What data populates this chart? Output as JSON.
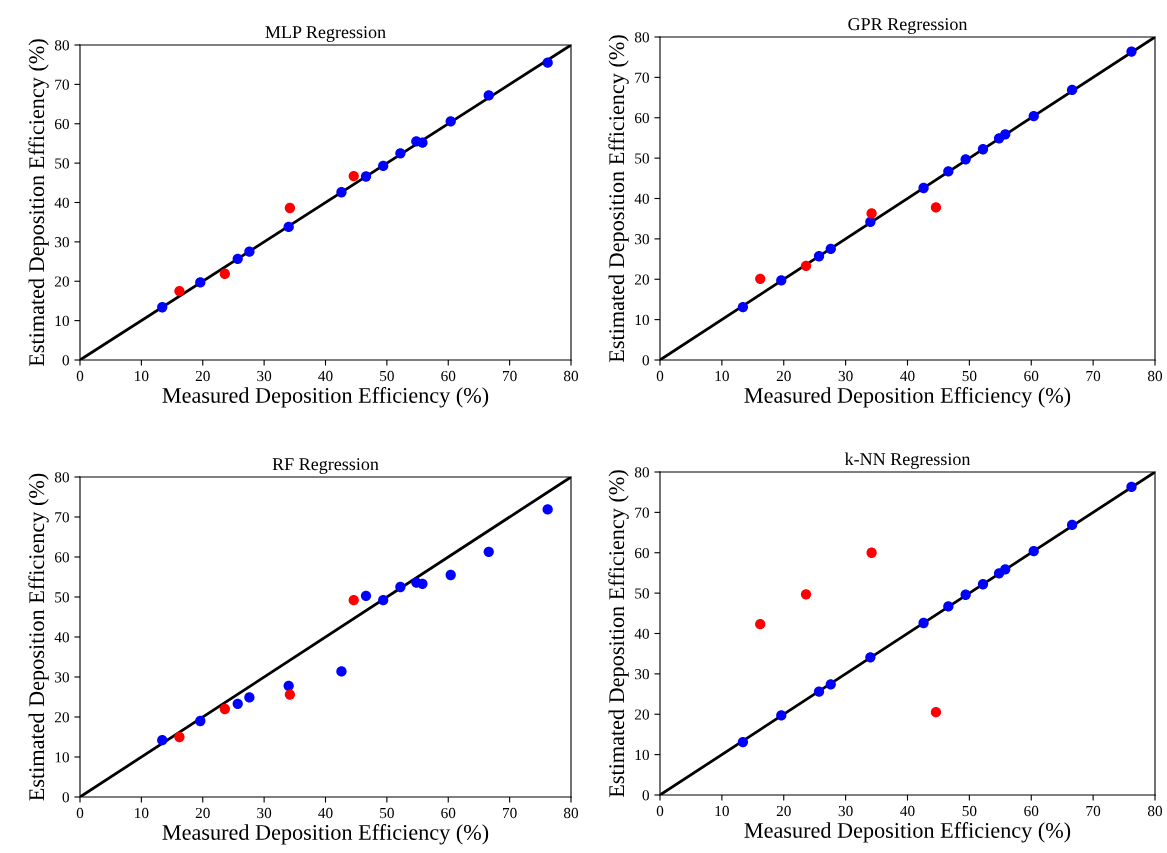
{
  "chart_data": [
    {
      "type": "scatter",
      "title": "MLP Regression",
      "xlabel": "Measured Deposition Efficiency (%)",
      "ylabel": "Estimated Deposition Efficiency (%)",
      "xlim": [
        0,
        80
      ],
      "ylim": [
        0,
        80
      ],
      "xticks": [
        0,
        10,
        20,
        30,
        40,
        50,
        60,
        70,
        80
      ],
      "yticks": [
        0,
        10,
        20,
        30,
        40,
        50,
        60,
        70,
        80
      ],
      "grid": false,
      "marker": "circle",
      "series": [
        {
          "type": "line",
          "marker": "none",
          "color": "#000000",
          "x": [
            0,
            80
          ],
          "values": [
            0,
            80
          ]
        },
        {
          "color": "#0000ff",
          "x": [
            13.4,
            19.6,
            25.7,
            27.6,
            34.0,
            42.6,
            46.6,
            49.4,
            52.2,
            54.8,
            55.8,
            60.4,
            66.6,
            76.2
          ],
          "values": [
            13.4,
            19.7,
            25.7,
            27.5,
            33.8,
            42.6,
            46.6,
            49.3,
            52.5,
            55.5,
            55.2,
            60.6,
            67.2,
            75.5
          ]
        },
        {
          "color": "#ff0000",
          "x": [
            16.2,
            23.6,
            34.2,
            44.6
          ],
          "values": [
            17.5,
            21.9,
            38.6,
            46.7
          ]
        }
      ]
    },
    {
      "type": "scatter",
      "title": "GPR Regression",
      "xlabel": "Measured Deposition Efficiency (%)",
      "ylabel": "Estimated Deposition Efficiency (%)",
      "xlim": [
        0,
        80
      ],
      "ylim": [
        0,
        80
      ],
      "xticks": [
        0,
        10,
        20,
        30,
        40,
        50,
        60,
        70,
        80
      ],
      "yticks": [
        0,
        10,
        20,
        30,
        40,
        50,
        60,
        70,
        80
      ],
      "grid": false,
      "marker": "circle",
      "series": [
        {
          "type": "line",
          "marker": "none",
          "color": "#000000",
          "x": [
            0,
            80
          ],
          "values": [
            0,
            80
          ]
        },
        {
          "color": "#0000ff",
          "x": [
            13.4,
            19.6,
            25.7,
            27.6,
            34.0,
            42.6,
            46.6,
            49.4,
            52.2,
            54.8,
            55.8,
            60.4,
            66.6,
            76.2
          ],
          "values": [
            13.1,
            19.7,
            25.7,
            27.5,
            34.2,
            42.6,
            46.7,
            49.7,
            52.2,
            54.9,
            55.9,
            60.4,
            66.9,
            76.4
          ]
        },
        {
          "color": "#ff0000",
          "x": [
            16.2,
            23.6,
            34.2,
            44.6
          ],
          "values": [
            20.1,
            23.3,
            36.3,
            37.8
          ]
        }
      ]
    },
    {
      "type": "scatter",
      "title": "RF Regression",
      "xlabel": "Measured Deposition Efficiency (%)",
      "ylabel": "Estimated Deposition Efficiency (%)",
      "xlim": [
        0,
        80
      ],
      "ylim": [
        0,
        80
      ],
      "xticks": [
        0,
        10,
        20,
        30,
        40,
        50,
        60,
        70,
        80
      ],
      "yticks": [
        0,
        10,
        20,
        30,
        40,
        50,
        60,
        70,
        80
      ],
      "grid": false,
      "marker": "circle",
      "series": [
        {
          "type": "line",
          "marker": "none",
          "color": "#000000",
          "x": [
            0,
            80
          ],
          "values": [
            0,
            80
          ]
        },
        {
          "color": "#0000ff",
          "x": [
            13.4,
            19.6,
            25.7,
            27.6,
            34.0,
            42.6,
            46.6,
            49.4,
            52.2,
            54.8,
            55.8,
            60.4,
            66.6,
            76.2
          ],
          "values": [
            14.2,
            19.0,
            23.3,
            24.9,
            27.8,
            31.4,
            50.3,
            49.2,
            52.5,
            53.6,
            53.3,
            55.5,
            61.3,
            71.9
          ]
        },
        {
          "color": "#ff0000",
          "x": [
            16.2,
            23.6,
            34.2,
            44.6
          ],
          "values": [
            15.0,
            22.0,
            25.6,
            49.2
          ]
        }
      ]
    },
    {
      "type": "scatter",
      "title": "k-NN Regression",
      "xlabel": "Measured Deposition Efficiency (%)",
      "ylabel": "Estimated Deposition Efficiency (%)",
      "xlim": [
        0,
        80
      ],
      "ylim": [
        0,
        80
      ],
      "xticks": [
        0,
        10,
        20,
        30,
        40,
        50,
        60,
        70,
        80
      ],
      "yticks": [
        0,
        10,
        20,
        30,
        40,
        50,
        60,
        70,
        80
      ],
      "grid": false,
      "marker": "circle",
      "series": [
        {
          "type": "line",
          "marker": "none",
          "color": "#000000",
          "x": [
            0,
            80
          ],
          "values": [
            0,
            80
          ]
        },
        {
          "color": "#0000ff",
          "x": [
            13.4,
            19.6,
            25.7,
            27.6,
            34.0,
            42.6,
            46.6,
            49.4,
            52.2,
            54.8,
            55.8,
            60.4,
            66.6,
            76.2
          ],
          "values": [
            13.1,
            19.7,
            25.6,
            27.4,
            34.1,
            42.6,
            46.7,
            49.6,
            52.2,
            54.9,
            55.9,
            60.4,
            66.9,
            76.3
          ]
        },
        {
          "color": "#ff0000",
          "x": [
            16.2,
            23.6,
            34.2,
            44.6
          ],
          "values": [
            42.3,
            49.7,
            60.0,
            20.5
          ]
        }
      ]
    }
  ]
}
